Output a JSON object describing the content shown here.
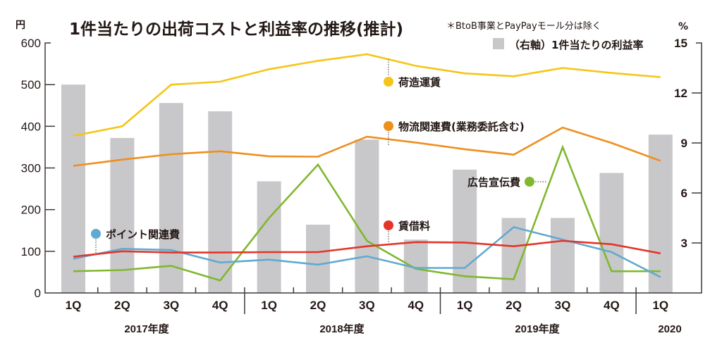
{
  "chart_data": {
    "type": "bar+line",
    "title": "1件当たりの出荷コストと利益率の推移(推計)",
    "note": "＊BtoB事業とPayPayモール分は除く",
    "left_axis": {
      "unit": "円",
      "ylim": [
        0,
        600
      ],
      "ticks": [
        "0",
        "100",
        "200",
        "300",
        "400",
        "500",
        "600"
      ]
    },
    "right_axis": {
      "unit": "%",
      "ylim": [
        0,
        15
      ],
      "ticks": [
        "3",
        "6",
        "9",
        "12",
        "15"
      ]
    },
    "categories": [
      "1Q",
      "2Q",
      "3Q",
      "4Q",
      "1Q",
      "2Q",
      "3Q",
      "4Q",
      "1Q",
      "2Q",
      "3Q",
      "4Q",
      "1Q"
    ],
    "year_groups": [
      {
        "label": "2017年度",
        "count": 4
      },
      {
        "label": "2018年度",
        "count": 4
      },
      {
        "label": "2019年度",
        "count": 4
      },
      {
        "label": "2020",
        "count": 1
      }
    ],
    "bars": {
      "name": "（右軸）1件当たりの利益率",
      "axis": "right",
      "color": "#c8c8ca",
      "values": [
        12.5,
        9.3,
        11.4,
        10.9,
        6.7,
        4.1,
        9.2,
        3.2,
        7.4,
        4.5,
        4.5,
        7.2,
        9.5
      ]
    },
    "series": [
      {
        "name": "荷造運賃",
        "color": "#f5c518",
        "values": [
          377,
          400,
          500,
          507,
          537,
          557,
          573,
          545,
          527,
          520,
          540,
          528,
          518
        ]
      },
      {
        "name": "物流関連費(業務委託含む)",
        "color": "#ee8f1e",
        "values": [
          305,
          320,
          333,
          340,
          328,
          327,
          375,
          361,
          345,
          332,
          397,
          360,
          317
        ]
      },
      {
        "name": "広告宣伝費",
        "color": "#80b82e",
        "values": [
          52,
          55,
          65,
          30,
          180,
          308,
          125,
          58,
          40,
          33,
          350,
          52,
          52
        ]
      },
      {
        "name": "賃借料",
        "color": "#e3352b",
        "values": [
          87,
          100,
          97,
          97,
          98,
          98,
          112,
          122,
          121,
          112,
          125,
          117,
          95
        ]
      },
      {
        "name": "ポイント関連費",
        "color": "#62a9d0",
        "values": [
          82,
          106,
          103,
          73,
          80,
          68,
          88,
          60,
          60,
          158,
          128,
          98,
          38
        ]
      }
    ],
    "legend_placement": "top-right",
    "grid": false
  }
}
